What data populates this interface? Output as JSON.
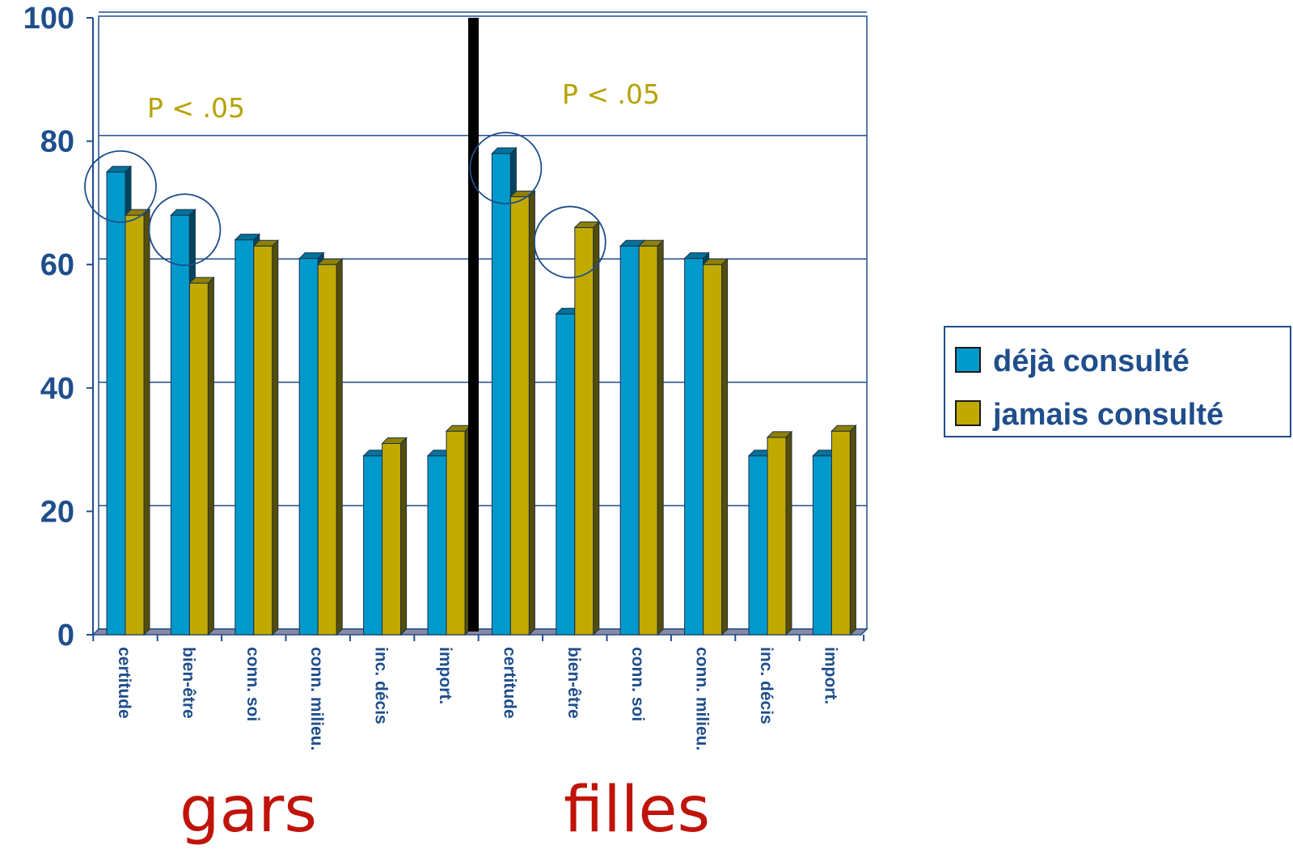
{
  "chart_data": {
    "type": "bar",
    "categories": [
      "certitude",
      "bien-être",
      "conn. soi",
      "conn. milieu.",
      "inc. décis",
      "import.",
      "certitude",
      "bien-être",
      "conn. soi",
      "conn. milieu.",
      "inc. décis",
      "import."
    ],
    "series": [
      {
        "name": "déjà consulté",
        "color": "#0099cc",
        "values": [
          75,
          68,
          64,
          61,
          29,
          29,
          78,
          52,
          63,
          61,
          29,
          29
        ]
      },
      {
        "name": "jamais consulté",
        "color": "#c0aa00",
        "values": [
          68,
          57,
          63,
          60,
          31,
          33,
          71,
          66,
          63,
          60,
          32,
          33
        ]
      }
    ],
    "yticks": [
      "0",
      "20",
      "40",
      "60",
      "80",
      "100"
    ],
    "ylim": [
      0,
      100
    ],
    "grid": true,
    "legend": "right",
    "groups": [
      {
        "label": "gars",
        "categories": [
          0,
          5
        ]
      },
      {
        "label": "filles",
        "categories": [
          6,
          11
        ]
      }
    ],
    "annotations": [
      {
        "text": "P < .05",
        "group": 0
      },
      {
        "text": "P < .05",
        "group": 1
      }
    ],
    "highlighted_categories": [
      0,
      1,
      6,
      7
    ]
  }
}
